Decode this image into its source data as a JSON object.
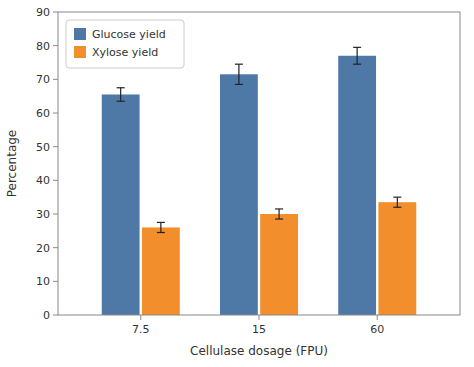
{
  "chart_data": {
    "type": "bar",
    "categories": [
      "7.5",
      "15",
      "60"
    ],
    "series": [
      {
        "name": "Glucose yield",
        "color": "#4e79a7",
        "values": [
          65.5,
          71.5,
          77.0
        ],
        "errors": [
          2.0,
          3.0,
          2.5
        ]
      },
      {
        "name": "Xylose yield",
        "color": "#f28e2b",
        "values": [
          26.0,
          30.0,
          33.5
        ],
        "errors": [
          1.5,
          1.5,
          1.5
        ]
      }
    ],
    "xlabel": "Cellulase dosage (FPU)",
    "ylabel": "Percentage",
    "ylim": [
      0,
      90
    ],
    "yticks": [
      0,
      10,
      20,
      30,
      40,
      50,
      60,
      70,
      80,
      90
    ],
    "legend": "upper left",
    "grid": false
  }
}
